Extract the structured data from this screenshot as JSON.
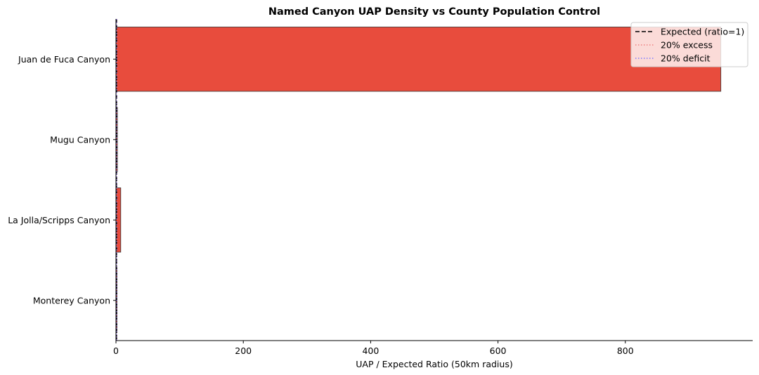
{
  "chart_data": {
    "type": "bar",
    "orientation": "horizontal",
    "title": "Named Canyon UAP Density vs County Population Control",
    "xlabel": "UAP / Expected Ratio (50km radius)",
    "ylabel": "",
    "categories": [
      "Monterey Canyon",
      "La Jolla/Scripps Canyon",
      "Mugu Canyon",
      "Juan de Fuca Canyon"
    ],
    "values": [
      1.3,
      7.5,
      2.2,
      950
    ],
    "xlim": [
      0,
      1000
    ],
    "xticks": [
      0,
      200,
      400,
      600,
      800
    ],
    "bar_color": "#e84c3d",
    "bar_edge_color": "#333333",
    "grid": false,
    "legend_position": "top-right",
    "reference_lines": [
      {
        "name": "Expected (ratio=1)",
        "value": 1.0,
        "color": "#000000",
        "style": "dashed"
      },
      {
        "name": "20% excess",
        "value": 1.2,
        "color": "#f08080",
        "style": "dotted"
      },
      {
        "name": "20% deficit",
        "value": 0.8,
        "color": "#7b7bff",
        "style": "dotted"
      }
    ]
  }
}
